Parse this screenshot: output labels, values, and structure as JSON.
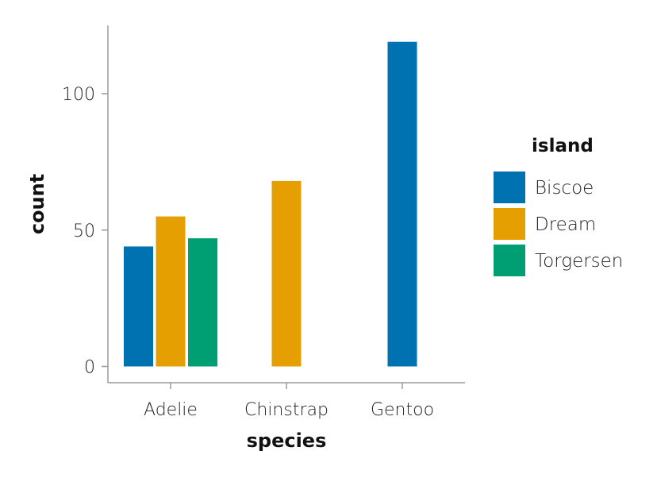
{
  "chart_data": {
    "type": "bar",
    "xlabel": "species",
    "ylabel": "count",
    "categories": [
      "Adelie",
      "Chinstrap",
      "Gentoo"
    ],
    "ylim": [
      0,
      125
    ],
    "yticks": [
      0,
      50,
      100
    ],
    "grid": false,
    "legend": {
      "title": "island",
      "placement": "right"
    },
    "series": [
      {
        "name": "Biscoe",
        "color": "#0072B2",
        "values": [
          44,
          null,
          119
        ]
      },
      {
        "name": "Dream",
        "color": "#E69F00",
        "values": [
          55,
          68,
          null
        ]
      },
      {
        "name": "Torgersen",
        "color": "#009E73",
        "values": [
          47,
          null,
          null
        ]
      }
    ]
  }
}
